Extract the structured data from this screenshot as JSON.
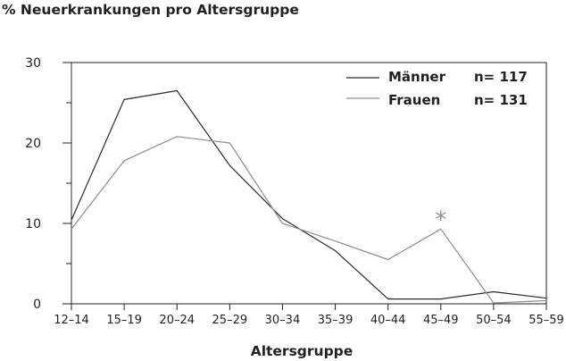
{
  "chart_data": {
    "type": "line",
    "title": "% Neuerkrankungen pro Altersgruppe",
    "xlabel": "Altersgruppe",
    "ylabel": "",
    "ylim": [
      0,
      30
    ],
    "yticks": [
      0,
      10,
      20,
      30
    ],
    "grid": false,
    "legend_placement": "top-right",
    "categories": [
      "12–14",
      "15–19",
      "20–24",
      "25–29",
      "30–34",
      "35–39",
      "40–44",
      "45–49",
      "50–54",
      "55–59"
    ],
    "series": [
      {
        "name": "Männer",
        "n_label": "n= 117",
        "color": "#2b2b2b",
        "values": [
          10.4,
          25.4,
          26.5,
          17.2,
          10.6,
          6.6,
          0.6,
          0.6,
          1.5,
          0.7
        ]
      },
      {
        "name": "Frauen",
        "n_label": "n= 131",
        "color": "#8f8f8f",
        "values": [
          9.3,
          17.8,
          20.8,
          20.0,
          10.0,
          7.8,
          5.5,
          9.3,
          0.1,
          0.4
        ]
      }
    ],
    "annotations": [
      {
        "text": "*",
        "category": "45–49",
        "series": "Frauen",
        "color": "#8f8f8f"
      }
    ]
  }
}
